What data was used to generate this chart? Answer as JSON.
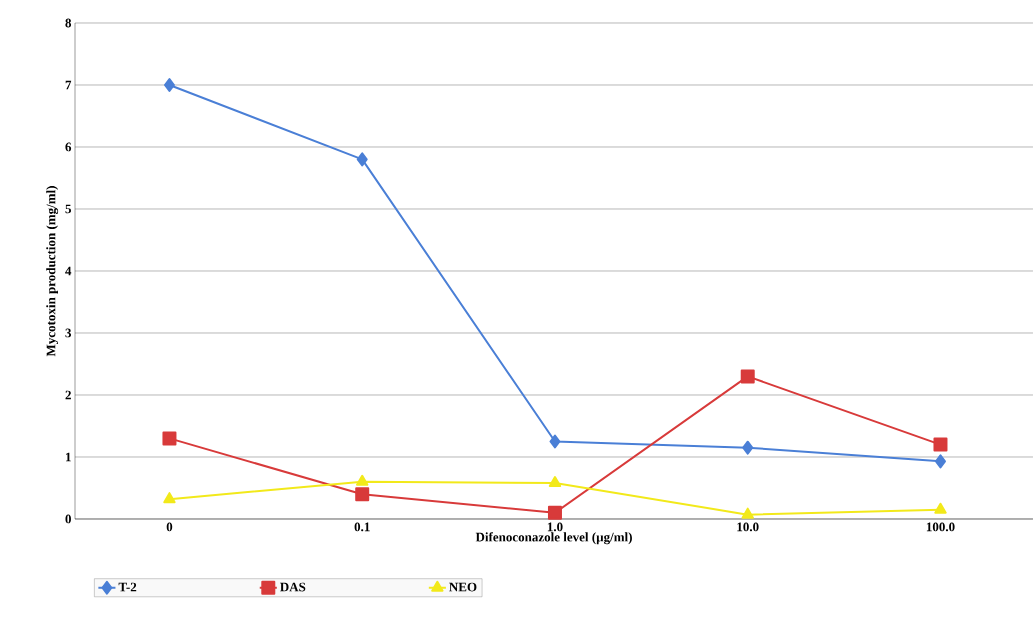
{
  "chart_data": {
    "type": "line",
    "xlabel": "Difenoconazole level (µg/ml)",
    "ylabel": "Mycotoxin production (mg/ml)",
    "categories": [
      "0",
      "0.1",
      "1.0",
      "10.0",
      "100.0"
    ],
    "series": [
      {
        "name": "T-2",
        "color": "#4a7fd6",
        "marker": "diamond",
        "values": [
          7.0,
          5.8,
          1.25,
          1.15,
          0.93
        ]
      },
      {
        "name": "DAS",
        "color": "#d83a3a",
        "marker": "square",
        "values": [
          1.3,
          0.4,
          0.1,
          2.3,
          1.2
        ]
      },
      {
        "name": "NEO",
        "color": "#f2e91a",
        "marker": "triangle",
        "values": [
          0.32,
          0.6,
          0.58,
          0.07,
          0.15
        ]
      }
    ],
    "ylim": [
      0,
      8
    ],
    "yticks": [
      0,
      1,
      2,
      3,
      4,
      5,
      6,
      7,
      8
    ],
    "grid": "y",
    "legend": "bottom",
    "line_style": "solid"
  }
}
